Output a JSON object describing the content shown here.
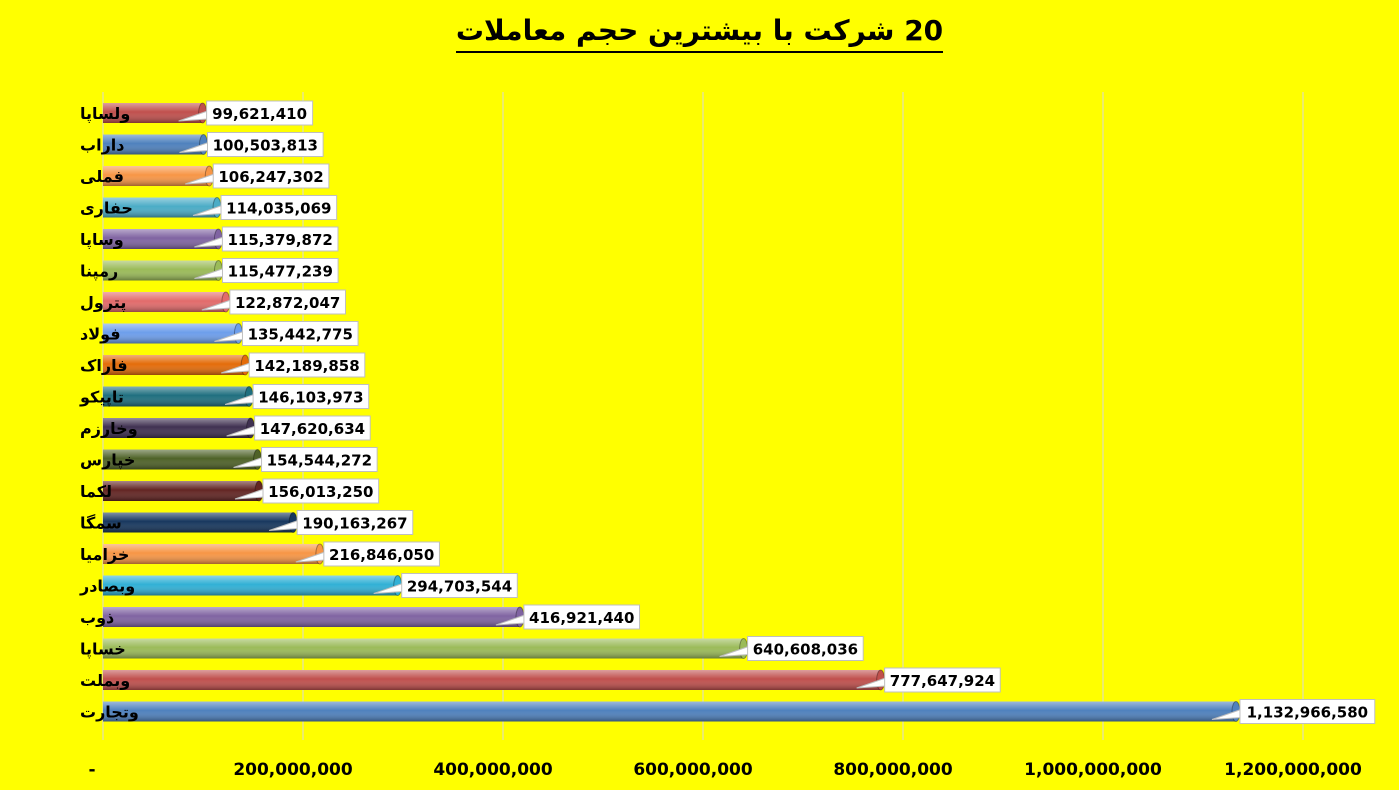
{
  "chart_data": {
    "type": "bar",
    "orientation": "horizontal",
    "title": "20 شرکت با بیشترین حجم معاملات",
    "xlabel": "",
    "ylabel": "",
    "xlim": [
      0,
      1200000000
    ],
    "grid": true,
    "legend": "none",
    "x_tick_labels": [
      "-",
      "200,000,000",
      "400,000,000",
      "600,000,000",
      "800,000,000",
      "1,000,000,000",
      "1,200,000,000"
    ],
    "x_tick_values": [
      0,
      200000000,
      400000000,
      600000000,
      800000000,
      1000000000,
      1200000000
    ],
    "categories": [
      "ولساپا",
      "داراب",
      "فملی",
      "حفاری",
      "وساپا",
      "رمپنا",
      "پترول",
      "فولاد",
      "فاراک",
      "تاپیکو",
      "وخارزم",
      "خپارس",
      "لکما",
      "سمگا",
      "خزامیا",
      "وبصادر",
      "ذوب",
      "خساپا",
      "وبملت",
      "وتجارت"
    ],
    "values": [
      99621410,
      100503813,
      106247302,
      114035069,
      115379872,
      115477239,
      122872047,
      135442775,
      142189858,
      146103973,
      147620634,
      154544272,
      156013250,
      190163267,
      216846050,
      294703544,
      416921440,
      640608036,
      777647924,
      1132966580
    ],
    "value_labels": [
      "99,621,410",
      "100,503,813",
      "106,247,302",
      "114,035,069",
      "115,379,872",
      "115,477,239",
      "122,872,047",
      "135,442,775",
      "142,189,858",
      "146,103,973",
      "147,620,634",
      "154,544,272",
      "156,013,250",
      "190,163,267",
      "216,846,050",
      "294,703,544",
      "416,921,440",
      "640,608,036",
      "777,647,924",
      "1,132,966,580"
    ],
    "bar_colors": [
      "#C0504D",
      "#4F81BD",
      "#F79646",
      "#4BACC6",
      "#8064A2",
      "#9BBB59",
      "#E26B6B",
      "#6D9EEB",
      "#E46C0A",
      "#1F6F7F",
      "#403151",
      "#4F6228",
      "#632523",
      "#17375E",
      "#F79646",
      "#31B0D5",
      "#8064A2",
      "#9BBB59",
      "#C0504D",
      "#4F81BD"
    ]
  }
}
